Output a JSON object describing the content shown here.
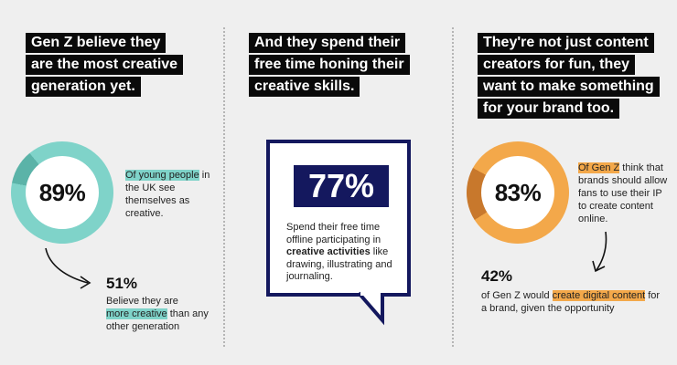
{
  "col1": {
    "headline": [
      "Gen Z believe they",
      "are the most creative",
      "generation yet."
    ],
    "donut": {
      "value": 89,
      "label": "89%",
      "track_color": "#7fd3c9",
      "segment_color": "#5bb3a8"
    },
    "stat_text": {
      "highlight": "Of young people",
      "rest": "in the UK see themselves as creative."
    },
    "secondary": {
      "label": "51%",
      "line1": "Believe they are",
      "highlight": "more creative",
      "rest": " than any other generation"
    }
  },
  "col2": {
    "headline": [
      "And they spend their",
      "free time honing their",
      "creative skills."
    ],
    "stat": "77%",
    "text": {
      "before": "Spend their free time offline participating in ",
      "bold": "creative activities",
      "after": " like drawing, illustrating and journaling."
    },
    "box_color": "#14185e"
  },
  "col3": {
    "headline": [
      "They're not just content",
      "creators for fun, they",
      "want to make something",
      "for your brand too."
    ],
    "donut": {
      "value": 83,
      "label": "83%",
      "track_color": "#f3a84a",
      "segment_color": "#c8782c"
    },
    "stat_text": {
      "highlight": "Of Gen Z",
      "rest": " think that brands should allow fans to use their IP to  create content online."
    },
    "secondary": {
      "label": "42%",
      "before": "of Gen Z would ",
      "highlight": "create digital content",
      "after": " for a brand, given the opportunity"
    }
  }
}
